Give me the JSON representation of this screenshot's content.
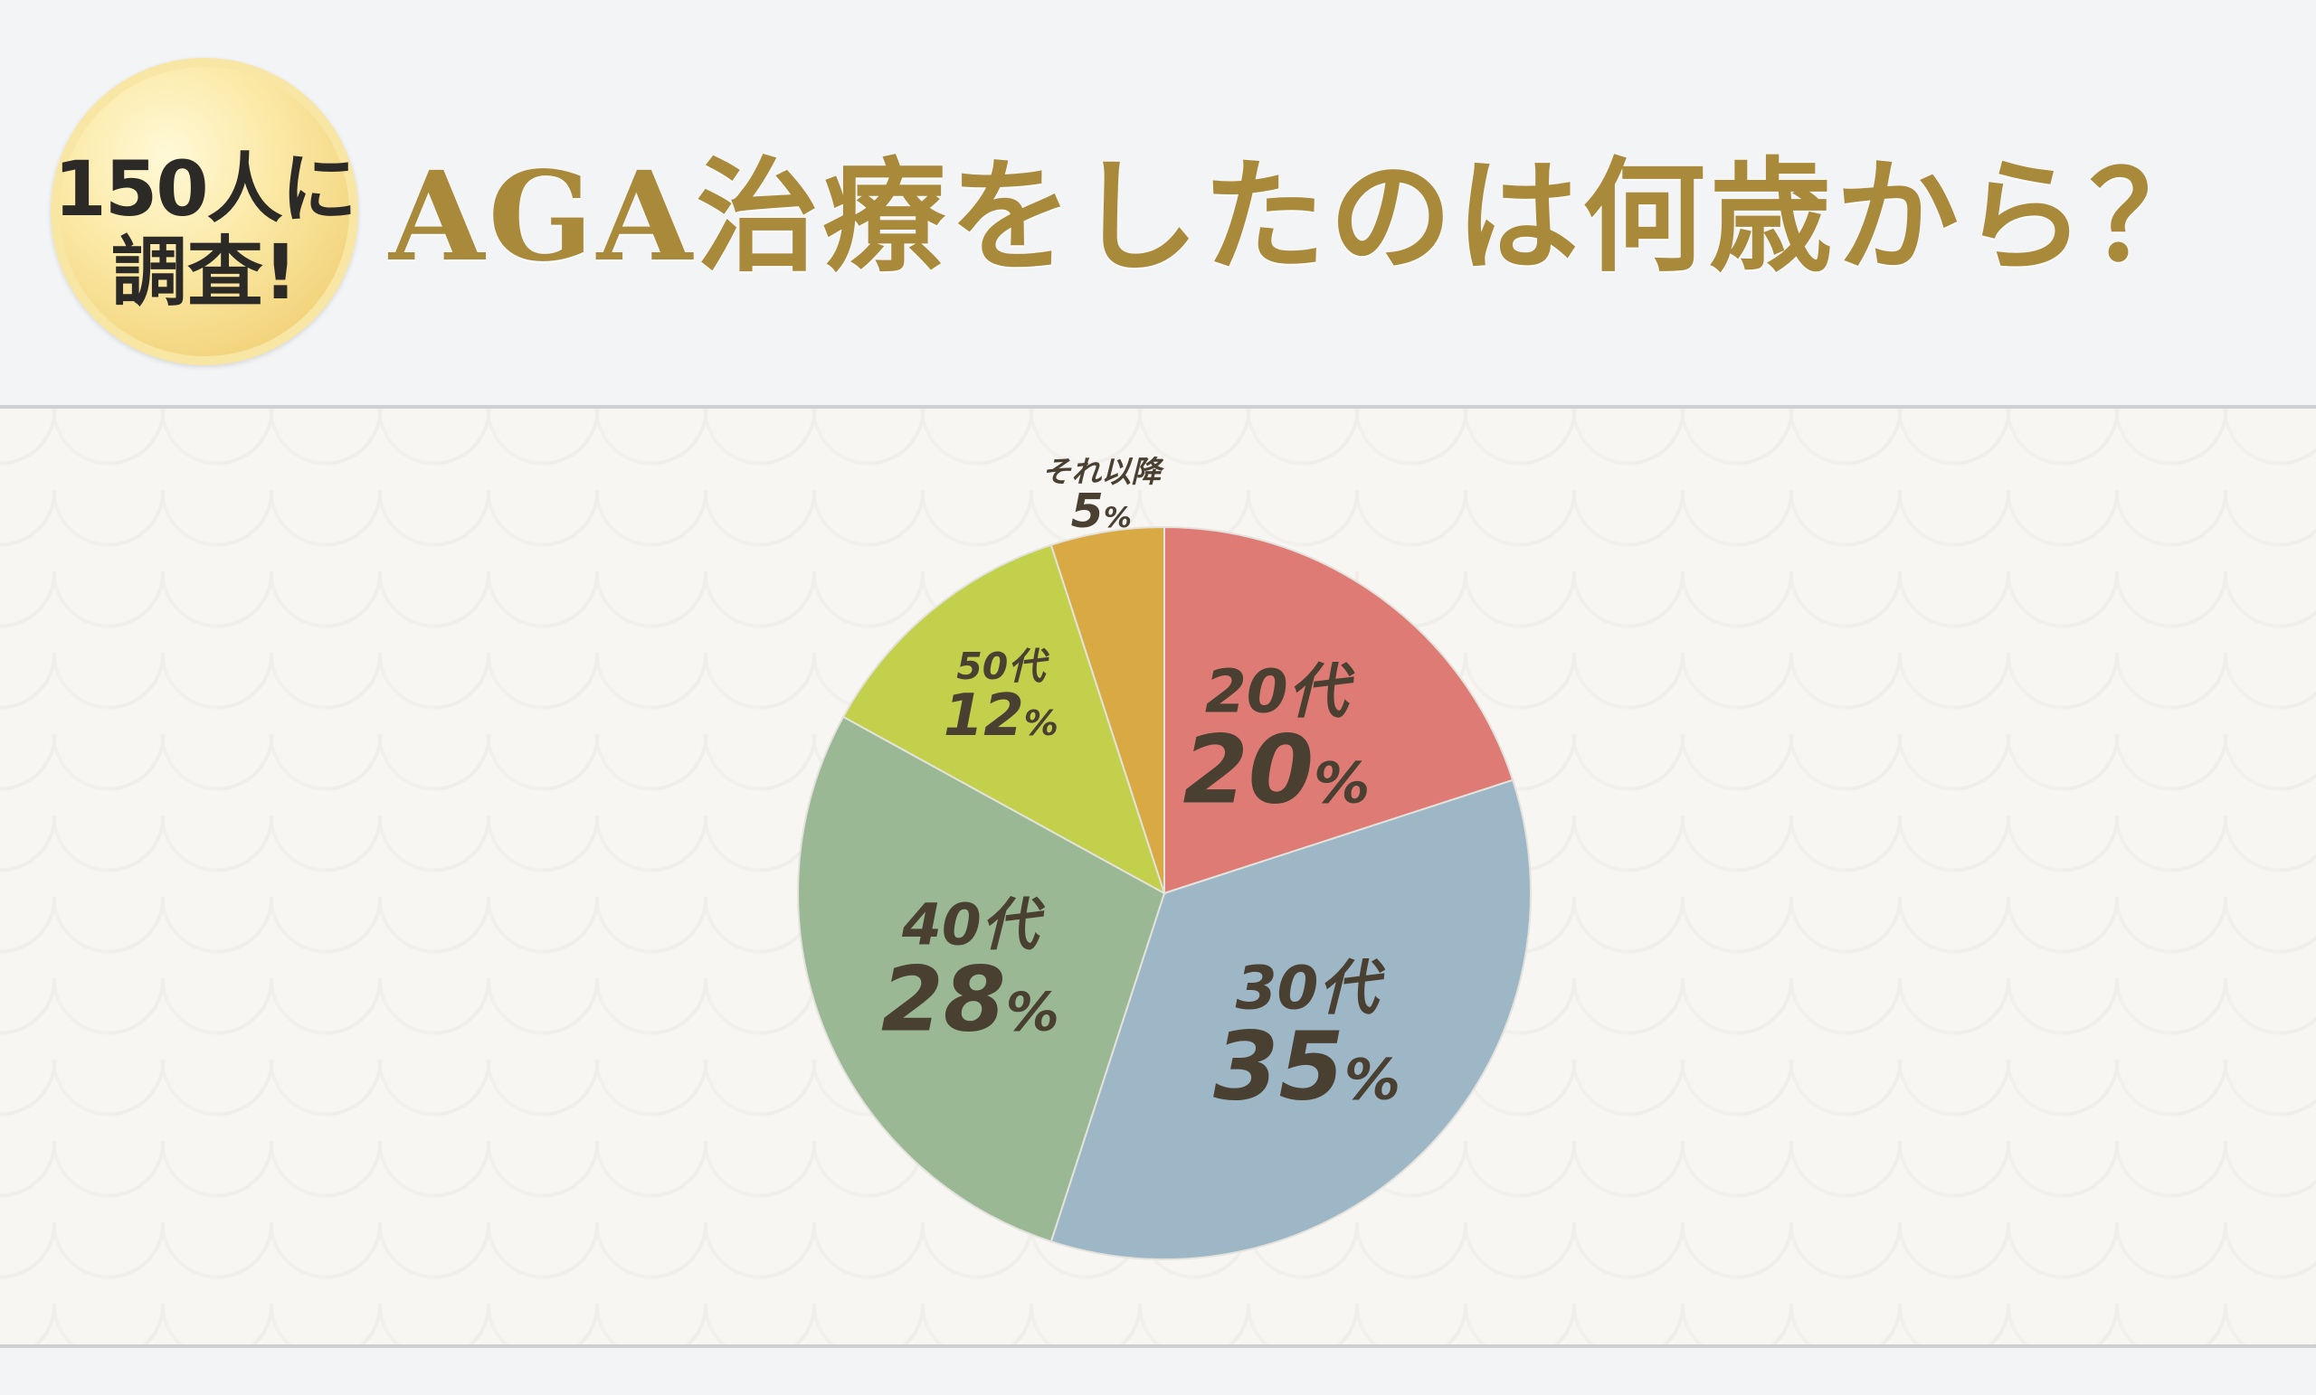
{
  "badge": {
    "line1": "150人に",
    "line2": "調査!"
  },
  "title": "AGA治療をしたのは何歳から？",
  "colors": {
    "title": "#a9893a",
    "label": "#4a4032"
  },
  "chart_data": {
    "type": "pie",
    "title": "AGA治療をしたのは何歳から？",
    "unit": "%",
    "slices": [
      {
        "label": "20代",
        "value": 20,
        "color": "#de7b75"
      },
      {
        "label": "30代",
        "value": 35,
        "color": "#9eb7c6"
      },
      {
        "label": "40代",
        "value": 28,
        "color": "#9bb894"
      },
      {
        "label": "50代",
        "value": 12,
        "color": "#c2d04c"
      },
      {
        "label": "それ以降",
        "value": 5,
        "color": "#d9aa44"
      }
    ]
  }
}
